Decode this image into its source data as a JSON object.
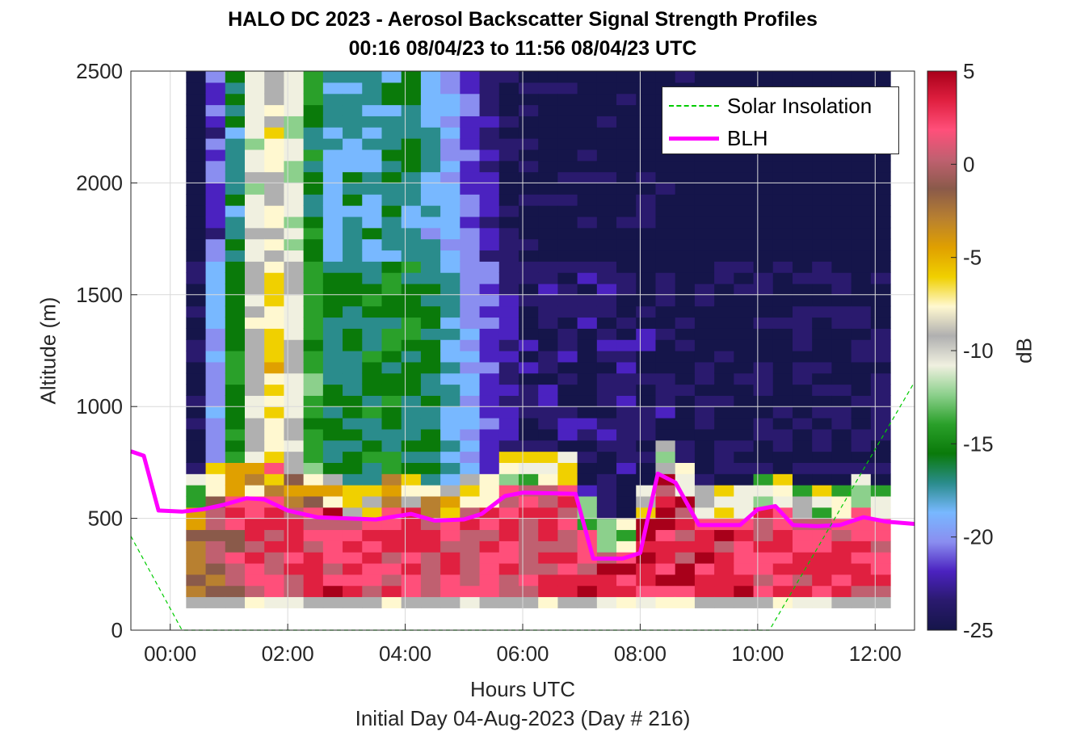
{
  "chart_data": {
    "type": "heatmap",
    "title": "HALO DC 2023 - Aerosol Backscatter Signal Strength Profiles",
    "subtitle": "00:16 08/04/23 to 11:56 08/04/23  UTC",
    "xlabel": "Hours UTC",
    "ylabel": "Altitude (m)",
    "note": "Initial Day 04-Aug-2023 (Day # 216)",
    "x_unit": "hours UTC",
    "xlim": [
      -0.67,
      12.67
    ],
    "ylim": [
      0,
      2500
    ],
    "x_ticks": [
      0,
      2,
      4,
      6,
      8,
      10,
      12
    ],
    "x_tick_labels": [
      "00:00",
      "02:00",
      "04:00",
      "06:00",
      "08:00",
      "10:00",
      "12:00"
    ],
    "y_ticks": [
      0,
      500,
      1000,
      1500,
      2000,
      2500
    ],
    "y_tick_labels": [
      "0",
      "500",
      "1000",
      "1500",
      "2000",
      "2500"
    ],
    "grid": true,
    "colorbar": {
      "label": "dB",
      "range": [
        -25,
        5
      ],
      "ticks": [
        5,
        0,
        -5,
        -10,
        -15,
        -20,
        -25
      ],
      "tick_labels": [
        "5",
        "0",
        "-5",
        "-10",
        "-15",
        "-20",
        "-25"
      ],
      "colormap": [
        "#15154a",
        "#2a1a6e",
        "#4b22c0",
        "#8a8ef0",
        "#78b8ff",
        "#2a8c8c",
        "#0a7a0a",
        "#2aa02a",
        "#8cd08c",
        "#f0f0e0",
        "#b0b0b0",
        "#fff8d0",
        "#f0d000",
        "#e0a000",
        "#b88030",
        "#8a5a4a",
        "#c06070",
        "#ff4f7a",
        "#e02040",
        "#a8001a"
      ]
    },
    "heatmap": {
      "x_start": 0.27,
      "bin_hours": 0.333,
      "bin_meters": 50,
      "description_of_values": "dB backscatter signal strength",
      "profiles": [
        {
          "t": 0.4,
          "blh_region_db": -2,
          "aloft_db": -24
        },
        {
          "t": 1.0,
          "blh_region_db": 2,
          "aloft_db": -16
        },
        {
          "t": 1.7,
          "blh_region_db": 3,
          "aloft_db": -6
        },
        {
          "t": 2.7,
          "blh_region_db": 4,
          "aloft_db": -16
        },
        {
          "t": 4.2,
          "blh_region_db": 3,
          "aloft_db": -15
        },
        {
          "t": 6.0,
          "blh_region_db": 3,
          "aloft_db": -23
        },
        {
          "t": 8.0,
          "blh_region_db": 4,
          "aloft_db": -23
        },
        {
          "t": 10.0,
          "blh_region_db": 4,
          "aloft_db": -24
        },
        {
          "t": 11.8,
          "blh_region_db": 3,
          "aloft_db": -24
        }
      ]
    },
    "series": [
      {
        "name": "BLH",
        "color": "#ff00ff",
        "style": "solid",
        "x": [
          -0.67,
          -0.45,
          -0.2,
          0.2,
          0.55,
          0.9,
          1.3,
          1.6,
          2.0,
          2.5,
          3.0,
          3.5,
          4.1,
          4.5,
          5.0,
          5.3,
          5.7,
          6.0,
          6.9,
          7.2,
          7.7,
          8.0,
          8.3,
          8.6,
          9.0,
          9.7,
          10.0,
          10.3,
          10.6,
          11.0,
          11.4,
          11.8,
          12.2,
          12.67
        ],
        "y": [
          800,
          780,
          535,
          530,
          540,
          560,
          590,
          585,
          535,
          505,
          500,
          495,
          520,
          490,
          495,
          520,
          600,
          615,
          610,
          320,
          320,
          345,
          700,
          660,
          470,
          470,
          540,
          555,
          470,
          465,
          470,
          505,
          485,
          475
        ]
      },
      {
        "name": "Solar Insolation",
        "color": "#00cc00",
        "style": "dashed",
        "x": [
          -0.67,
          0.2,
          10.2,
          12.67
        ],
        "y": [
          420,
          0,
          0,
          1110
        ]
      }
    ],
    "legend": {
      "position": "top-right",
      "entries": [
        "Solar Insolation",
        "BLH"
      ]
    }
  }
}
